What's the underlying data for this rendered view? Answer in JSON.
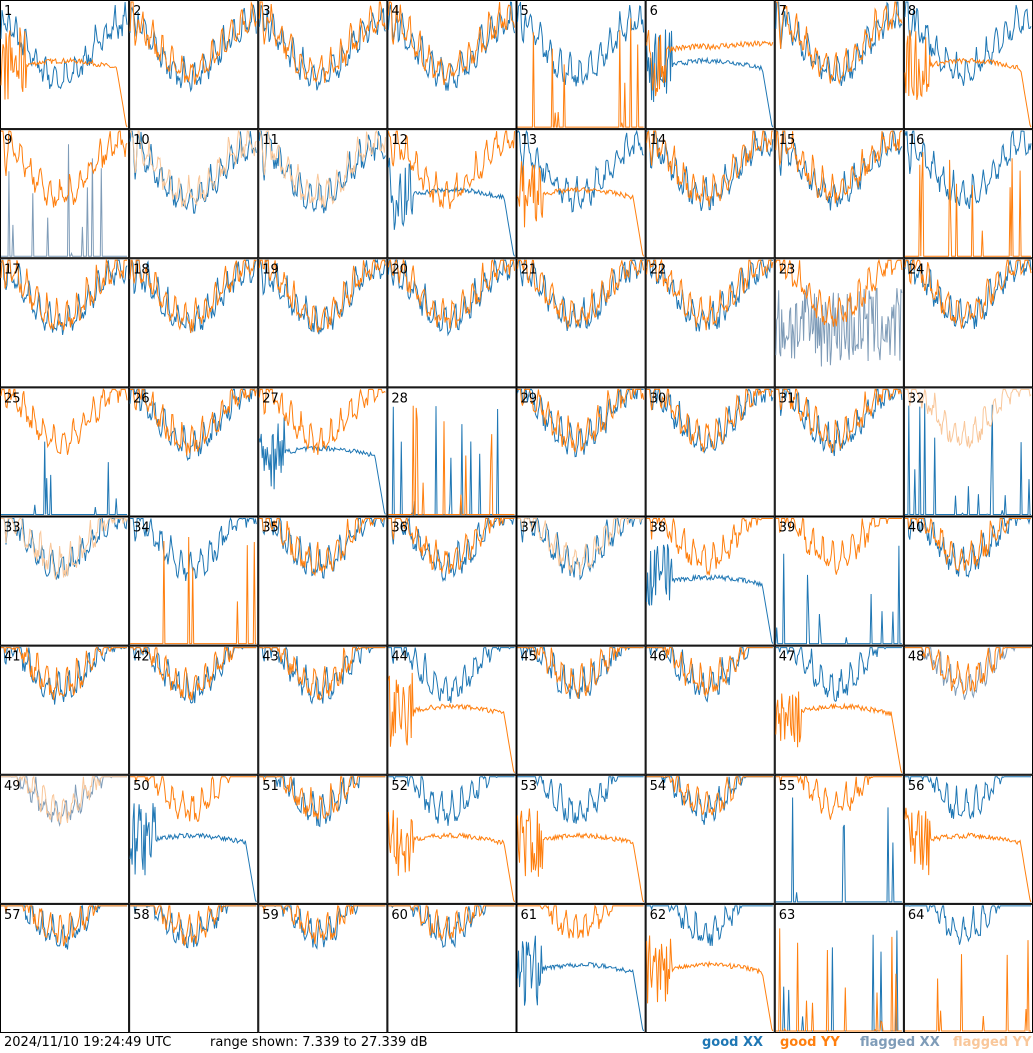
{
  "footer": {
    "timestamp": "2024/11/10 19:24:49 UTC",
    "range_text": "range shown: 7.339 to 27.339 dB"
  },
  "legend": [
    {
      "label": "good XX",
      "color": "#1f77b4"
    },
    {
      "label": "good YY",
      "color": "#ff7f0e"
    },
    {
      "label": "flagged XX",
      "color": "#7f9cb8"
    },
    {
      "label": "flagged YY",
      "color": "#f9c79a"
    }
  ],
  "chart_data": {
    "type": "line",
    "grid": "8x8",
    "y_range_db": [
      7.339,
      27.339
    ],
    "panels": [
      {
        "id": "1",
        "xx": "good",
        "yy": "good",
        "xx_shape": "normal",
        "yy_shape": "bump"
      },
      {
        "id": "2",
        "xx": "good",
        "yy": "good",
        "xx_shape": "normal",
        "yy_shape": "normal"
      },
      {
        "id": "3",
        "xx": "good",
        "yy": "good",
        "xx_shape": "normal",
        "yy_shape": "normal"
      },
      {
        "id": "4",
        "xx": "good",
        "yy": "good",
        "xx_shape": "normal",
        "yy_shape": "normal"
      },
      {
        "id": "5",
        "xx": "good",
        "yy": "good",
        "xx_shape": "normal",
        "yy_shape": "spikes"
      },
      {
        "id": "6",
        "xx": "good",
        "yy": "good",
        "xx_shape": "bump",
        "yy_shape": "flat_high"
      },
      {
        "id": "7",
        "xx": "good",
        "yy": "good",
        "xx_shape": "normal",
        "yy_shape": "normal"
      },
      {
        "id": "8",
        "xx": "good",
        "yy": "good",
        "xx_shape": "normal",
        "yy_shape": "bump"
      },
      {
        "id": "9",
        "xx": "flagged",
        "yy": "good",
        "xx_shape": "spikes",
        "yy_shape": "normal"
      },
      {
        "id": "10",
        "xx": "good",
        "yy": "flagged",
        "xx_shape": "normal",
        "yy_shape": "normal"
      },
      {
        "id": "11",
        "xx": "good",
        "yy": "flagged",
        "xx_shape": "normal",
        "yy_shape": "normal"
      },
      {
        "id": "12",
        "xx": "good",
        "yy": "good",
        "xx_shape": "bump",
        "yy_shape": "normal"
      },
      {
        "id": "13",
        "xx": "good",
        "yy": "good",
        "xx_shape": "normal",
        "yy_shape": "bump"
      },
      {
        "id": "14",
        "xx": "good",
        "yy": "good",
        "xx_shape": "normal",
        "yy_shape": "normal"
      },
      {
        "id": "15",
        "xx": "good",
        "yy": "good",
        "xx_shape": "normal",
        "yy_shape": "normal"
      },
      {
        "id": "16",
        "xx": "good",
        "yy": "good",
        "xx_shape": "normal",
        "yy_shape": "spikes"
      },
      {
        "id": "17",
        "xx": "good",
        "yy": "good",
        "xx_shape": "normal",
        "yy_shape": "normal"
      },
      {
        "id": "18",
        "xx": "good",
        "yy": "good",
        "xx_shape": "normal",
        "yy_shape": "normal"
      },
      {
        "id": "19",
        "xx": "good",
        "yy": "good",
        "xx_shape": "normal",
        "yy_shape": "normal"
      },
      {
        "id": "20",
        "xx": "good",
        "yy": "good",
        "xx_shape": "normal",
        "yy_shape": "normal"
      },
      {
        "id": "21",
        "xx": "good",
        "yy": "good",
        "xx_shape": "normal",
        "yy_shape": "normal"
      },
      {
        "id": "22",
        "xx": "good",
        "yy": "good",
        "xx_shape": "normal",
        "yy_shape": "normal"
      },
      {
        "id": "23",
        "xx": "flagged",
        "yy": "good",
        "xx_shape": "noisy",
        "yy_shape": "normal"
      },
      {
        "id": "24",
        "xx": "good",
        "yy": "good",
        "xx_shape": "normal",
        "yy_shape": "normal"
      },
      {
        "id": "25",
        "xx": "good",
        "yy": "good",
        "xx_shape": "spikes",
        "yy_shape": "normal"
      },
      {
        "id": "26",
        "xx": "good",
        "yy": "good",
        "xx_shape": "normal",
        "yy_shape": "normal"
      },
      {
        "id": "27",
        "xx": "good",
        "yy": "good",
        "xx_shape": "bump",
        "yy_shape": "normal"
      },
      {
        "id": "28",
        "xx": "good",
        "yy": "good",
        "xx_shape": "spikes",
        "yy_shape": "spikes"
      },
      {
        "id": "29",
        "xx": "good",
        "yy": "good",
        "xx_shape": "normal",
        "yy_shape": "normal"
      },
      {
        "id": "30",
        "xx": "good",
        "yy": "good",
        "xx_shape": "normal",
        "yy_shape": "normal"
      },
      {
        "id": "31",
        "xx": "good",
        "yy": "good",
        "xx_shape": "normal",
        "yy_shape": "normal"
      },
      {
        "id": "32",
        "xx": "good",
        "yy": "flagged",
        "xx_shape": "spikes",
        "yy_shape": "normal"
      },
      {
        "id": "33",
        "xx": "good",
        "yy": "flagged",
        "xx_shape": "normal",
        "yy_shape": "normal"
      },
      {
        "id": "34",
        "xx": "good",
        "yy": "good",
        "xx_shape": "normal",
        "yy_shape": "spikes"
      },
      {
        "id": "35",
        "xx": "good",
        "yy": "good",
        "xx_shape": "normal",
        "yy_shape": "normal"
      },
      {
        "id": "36",
        "xx": "good",
        "yy": "good",
        "xx_shape": "normal",
        "yy_shape": "normal"
      },
      {
        "id": "37",
        "xx": "good",
        "yy": "flagged",
        "xx_shape": "normal",
        "yy_shape": "normal"
      },
      {
        "id": "38",
        "xx": "good",
        "yy": "good",
        "xx_shape": "bump",
        "yy_shape": "normal"
      },
      {
        "id": "39",
        "xx": "good",
        "yy": "good",
        "xx_shape": "spikes",
        "yy_shape": "normal"
      },
      {
        "id": "40",
        "xx": "good",
        "yy": "good",
        "xx_shape": "normal",
        "yy_shape": "normal"
      },
      {
        "id": "41",
        "xx": "good",
        "yy": "good",
        "xx_shape": "normal",
        "yy_shape": "normal"
      },
      {
        "id": "42",
        "xx": "good",
        "yy": "good",
        "xx_shape": "normal",
        "yy_shape": "normal"
      },
      {
        "id": "43",
        "xx": "good",
        "yy": "good",
        "xx_shape": "normal",
        "yy_shape": "normal"
      },
      {
        "id": "44",
        "xx": "good",
        "yy": "good",
        "xx_shape": "normal",
        "yy_shape": "bump"
      },
      {
        "id": "45",
        "xx": "good",
        "yy": "good",
        "xx_shape": "normal",
        "yy_shape": "normal"
      },
      {
        "id": "46",
        "xx": "good",
        "yy": "good",
        "xx_shape": "normal",
        "yy_shape": "normal"
      },
      {
        "id": "47",
        "xx": "good",
        "yy": "good",
        "xx_shape": "normal",
        "yy_shape": "bump"
      },
      {
        "id": "48",
        "xx": "flagged",
        "yy": "good",
        "xx_shape": "normal",
        "yy_shape": "normal"
      },
      {
        "id": "49",
        "xx": "flagged",
        "yy": "flagged",
        "xx_shape": "normal",
        "yy_shape": "normal"
      },
      {
        "id": "50",
        "xx": "good",
        "yy": "good",
        "xx_shape": "bump",
        "yy_shape": "normal"
      },
      {
        "id": "51",
        "xx": "good",
        "yy": "good",
        "xx_shape": "normal",
        "yy_shape": "normal"
      },
      {
        "id": "52",
        "xx": "good",
        "yy": "good",
        "xx_shape": "normal",
        "yy_shape": "bump"
      },
      {
        "id": "53",
        "xx": "good",
        "yy": "good",
        "xx_shape": "normal",
        "yy_shape": "bump"
      },
      {
        "id": "54",
        "xx": "good",
        "yy": "good",
        "xx_shape": "normal",
        "yy_shape": "normal"
      },
      {
        "id": "55",
        "xx": "good",
        "yy": "good",
        "xx_shape": "spikes",
        "yy_shape": "normal"
      },
      {
        "id": "56",
        "xx": "good",
        "yy": "good",
        "xx_shape": "normal",
        "yy_shape": "bump"
      },
      {
        "id": "57",
        "xx": "good",
        "yy": "good",
        "xx_shape": "normal",
        "yy_shape": "normal"
      },
      {
        "id": "58",
        "xx": "good",
        "yy": "good",
        "xx_shape": "normal",
        "yy_shape": "normal"
      },
      {
        "id": "59",
        "xx": "good",
        "yy": "good",
        "xx_shape": "normal",
        "yy_shape": "normal"
      },
      {
        "id": "60",
        "xx": "good",
        "yy": "good",
        "xx_shape": "normal",
        "yy_shape": "normal"
      },
      {
        "id": "61",
        "xx": "good",
        "yy": "good",
        "xx_shape": "bump",
        "yy_shape": "normal"
      },
      {
        "id": "62",
        "xx": "good",
        "yy": "good",
        "xx_shape": "normal",
        "yy_shape": "bump"
      },
      {
        "id": "63",
        "xx": "good",
        "yy": "good",
        "xx_shape": "spikes",
        "yy_shape": "spikes"
      },
      {
        "id": "64",
        "xx": "good",
        "yy": "good",
        "xx_shape": "normal",
        "yy_shape": "spikes"
      }
    ]
  }
}
